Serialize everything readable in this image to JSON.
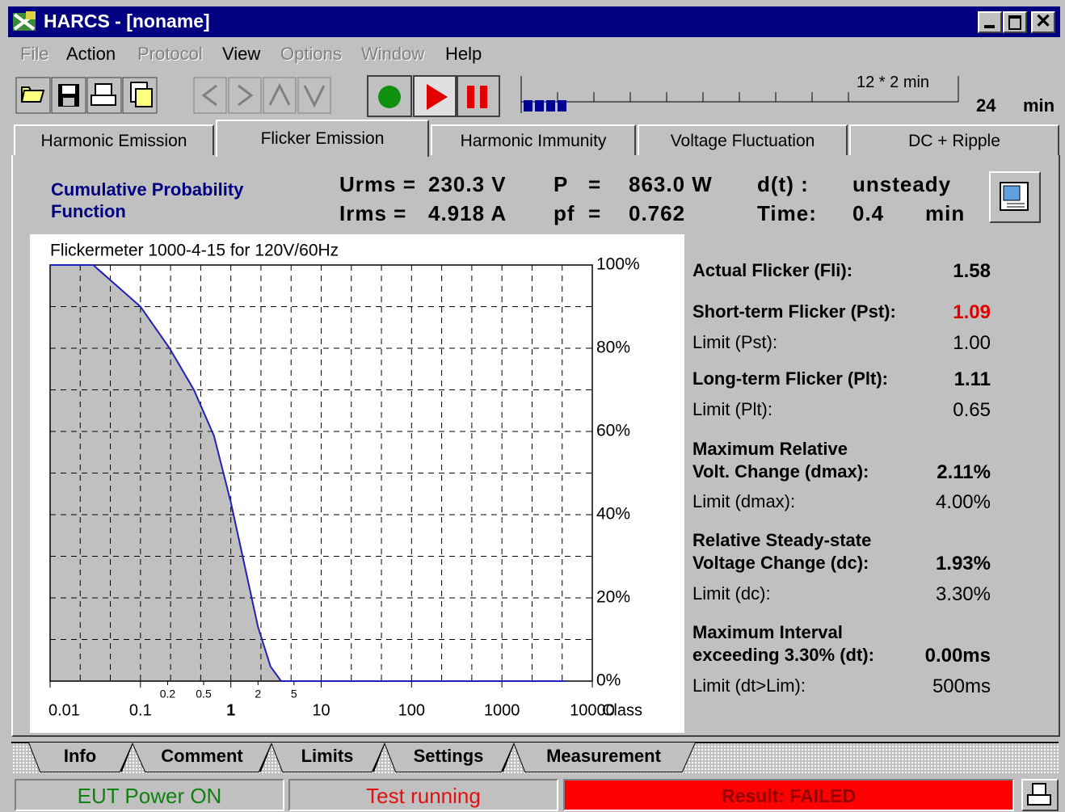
{
  "window": {
    "title": "HARCS - [noname]"
  },
  "menu": [
    {
      "label": "File",
      "enabled": false
    },
    {
      "label": "Action",
      "enabled": true
    },
    {
      "label": "Protocol",
      "enabled": false
    },
    {
      "label": "View",
      "enabled": true
    },
    {
      "label": "Options",
      "enabled": false
    },
    {
      "label": "Window",
      "enabled": false
    },
    {
      "label": "Help",
      "enabled": true
    }
  ],
  "toolbar": {
    "timeline_label": "12 * 2 min",
    "time_value": "24",
    "time_unit": "min"
  },
  "tabs": [
    {
      "label": "Harmonic Emission",
      "active": false
    },
    {
      "label": "Flicker Emission",
      "active": true
    },
    {
      "label": "Harmonic Immunity",
      "active": false
    },
    {
      "label": "Voltage Fluctuation",
      "active": false
    },
    {
      "label": "DC + Ripple",
      "active": false
    }
  ],
  "header": {
    "title": [
      "Cumulative Probability",
      "Function"
    ],
    "readings": [
      "Urms =",
      "230.3 V",
      "P",
      "=",
      "863.0 W",
      "d(t) :",
      "unsteady",
      "Irms =",
      "4.918 A",
      "pf",
      "=",
      "0.762",
      "Time:",
      "0.4",
      "min"
    ]
  },
  "chart_data": {
    "type": "area",
    "title": "Flickermeter 1000-4-15  for 120V/60Hz",
    "x_label": "Class",
    "xscale": "log",
    "xlim": [
      0.01,
      10000
    ],
    "xticks": [
      0.01,
      0.1,
      1,
      10,
      100,
      1000,
      10000
    ],
    "xticks_minor": [
      0.2,
      0.5,
      2,
      5
    ],
    "ylim": [
      0,
      100
    ],
    "yticks": [
      {
        "value": 0,
        "label": "0%"
      },
      {
        "value": 20,
        "label": "20%"
      },
      {
        "value": 40,
        "label": "40%"
      },
      {
        "value": 60,
        "label": "60%"
      },
      {
        "value": 80,
        "label": "80%"
      },
      {
        "value": 100,
        "label": "100%"
      }
    ],
    "grid": true,
    "series": [
      {
        "color": "#2020c0",
        "fill": "#c0c0c0",
        "x": [
          0.01,
          0.03,
          0.1,
          0.21,
          0.39,
          0.65,
          1,
          1.35,
          2,
          2.75,
          3.6,
          5000
        ],
        "values": [
          100,
          100,
          90,
          80,
          70,
          59,
          43,
          30,
          13,
          3.5,
          0,
          0
        ]
      }
    ]
  },
  "results": [
    {
      "label": [
        "Actual Flicker  (Fli):"
      ],
      "value": "1.58",
      "bold": true
    },
    {
      "label": [
        "Short-term Flicker (Pst):"
      ],
      "value": "1.09",
      "bold": true,
      "color": "#e00000"
    },
    {
      "label": [
        "Limit (Pst):"
      ],
      "value": "1.00",
      "bold": false
    },
    {
      "label": [
        "Long-term Flicker  (Plt):"
      ],
      "value": "1.11",
      "bold": true
    },
    {
      "label": [
        "Limit (Plt):"
      ],
      "value": "0.65",
      "bold": false
    },
    {
      "label": [
        "Maximum Relative",
        "Volt. Change (dmax):"
      ],
      "value": "2.11%",
      "bold": true
    },
    {
      "label": [
        "Limit (dmax):"
      ],
      "value": "4.00%",
      "bold": false
    },
    {
      "label": [
        "Relative Steady-state",
        "Voltage Change  (dc):"
      ],
      "value": "1.93%",
      "bold": true
    },
    {
      "label": [
        "Limit (dc):"
      ],
      "value": "3.30%",
      "bold": false
    },
    {
      "label": [
        "Maximum Interval",
        "exceeding 3.30%  (dt):"
      ],
      "value": "0.00ms",
      "bold": true
    },
    {
      "label": [
        "Limit (dt>Lim):"
      ],
      "value": "500ms",
      "bold": false
    }
  ],
  "bottom_tabs": [
    {
      "label": "Info",
      "active": false
    },
    {
      "label": "Comment",
      "active": false
    },
    {
      "label": "Limits",
      "active": false
    },
    {
      "label": "Settings",
      "active": false
    },
    {
      "label": "Measurement",
      "active": true
    }
  ],
  "status": {
    "power": "EUT Power ON",
    "test": "Test running",
    "result": "Result: FAILED"
  }
}
